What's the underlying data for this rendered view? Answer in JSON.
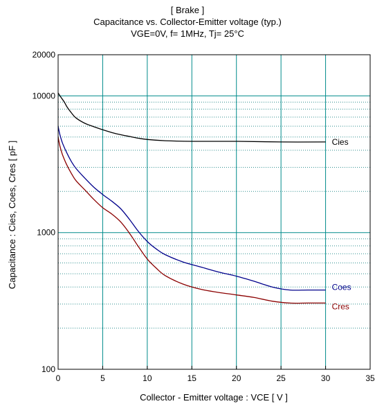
{
  "chart_data": {
    "type": "line",
    "title_lines": [
      "[ Brake ]",
      "Capacitance  vs.  Collector-Emitter voltage  (typ.)",
      "VGE=0V,  f= 1MHz,  Tj= 25°C"
    ],
    "xlabel": "Collector - Emitter voltage  :  VCE  [ V ]",
    "ylabel": "Capacitance  :  Cies, Coes, Cres  [ pF ]",
    "x_scale": "linear",
    "y_scale": "log",
    "xlim": [
      0,
      35
    ],
    "ylim": [
      100,
      20000
    ],
    "x_ticks": [
      0,
      5,
      10,
      15,
      20,
      25,
      30,
      35
    ],
    "x_tick_labels": [
      "0",
      "5",
      "10",
      "15",
      "20",
      "25",
      "30",
      "35"
    ],
    "y_tick_values": [
      100,
      1000,
      10000,
      20000
    ],
    "y_tick_labels": [
      "100",
      "1000",
      "10000",
      "20000"
    ],
    "grid": true,
    "legend": "inline labels at line ends",
    "series": [
      {
        "name": "Cies",
        "color": "#000000",
        "x": [
          0,
          0.3,
          0.7,
          1,
          1.5,
          2,
          3,
          4,
          5,
          6,
          7,
          8,
          9,
          10,
          12,
          15,
          20,
          25,
          30
        ],
        "y": [
          10500,
          9800,
          9000,
          8300,
          7500,
          6900,
          6300,
          5950,
          5650,
          5400,
          5200,
          5050,
          4900,
          4800,
          4700,
          4650,
          4650,
          4600,
          4600
        ]
      },
      {
        "name": "Coes",
        "color": "#00008b",
        "x": [
          0,
          0.2,
          0.5,
          1,
          1.5,
          2,
          3,
          4,
          5,
          6,
          7,
          8,
          9,
          10,
          11,
          12,
          14,
          16,
          18,
          20,
          22,
          24,
          26,
          28,
          30
        ],
        "y": [
          6000,
          5200,
          4500,
          3800,
          3300,
          2950,
          2500,
          2150,
          1900,
          1700,
          1500,
          1250,
          1020,
          860,
          760,
          690,
          610,
          560,
          515,
          480,
          440,
          400,
          380,
          380,
          380
        ]
      },
      {
        "name": "Cres",
        "color": "#8b0000",
        "x": [
          0,
          0.2,
          0.5,
          1,
          1.5,
          2,
          3,
          4,
          5,
          6,
          7,
          8,
          9,
          10,
          11,
          12,
          14,
          16,
          18,
          20,
          22,
          24,
          26,
          28,
          30
        ],
        "y": [
          5000,
          4300,
          3700,
          3100,
          2700,
          2400,
          2050,
          1750,
          1520,
          1370,
          1200,
          990,
          790,
          640,
          550,
          485,
          420,
          385,
          365,
          350,
          335,
          315,
          305,
          305,
          305
        ]
      }
    ]
  }
}
